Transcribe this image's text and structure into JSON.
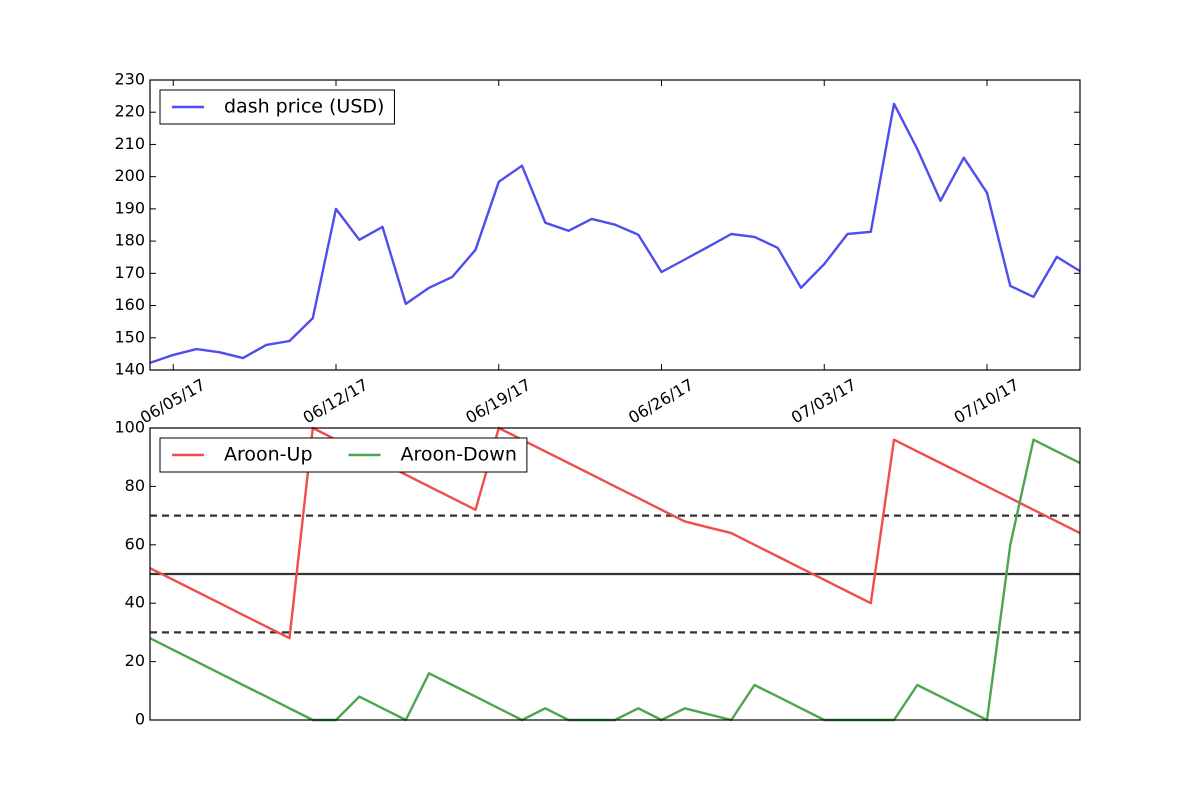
{
  "chart_data": [
    {
      "type": "line",
      "x": [
        "2017-06-04",
        "2017-06-05",
        "2017-06-06",
        "2017-06-07",
        "2017-06-08",
        "2017-06-09",
        "2017-06-10",
        "2017-06-11",
        "2017-06-12",
        "2017-06-13",
        "2017-06-14",
        "2017-06-15",
        "2017-06-16",
        "2017-06-17",
        "2017-06-18",
        "2017-06-19",
        "2017-06-20",
        "2017-06-21",
        "2017-06-22",
        "2017-06-23",
        "2017-06-24",
        "2017-06-25",
        "2017-06-26",
        "2017-06-27",
        "2017-06-28",
        "2017-06-29",
        "2017-06-30",
        "2017-07-01",
        "2017-07-02",
        "2017-07-03",
        "2017-07-04",
        "2017-07-05",
        "2017-07-06",
        "2017-07-07",
        "2017-07-08",
        "2017-07-09",
        "2017-07-10",
        "2017-07-11",
        "2017-07-12",
        "2017-07-13",
        "2017-07-14"
      ],
      "series": [
        {
          "name": "dash price (USD)",
          "color": "#4d4df0",
          "values": [
            142.2,
            144.7,
            146.5,
            145.5,
            143.7,
            147.8,
            149,
            156.1,
            190,
            180.4,
            184.4,
            160.5,
            165.5,
            168.9,
            177.3,
            198.4,
            203.4,
            185.7,
            183.2,
            186.9,
            185.1,
            182,
            170.4,
            174.3,
            178.2,
            182.2,
            181.3,
            177.9,
            165.5,
            172.9,
            182.2,
            182.9,
            222.6,
            208.6,
            192.5,
            205.9,
            195,
            166.1,
            162.7,
            175.1,
            170.7
          ]
        }
      ],
      "xlim": [
        "2017-06-04",
        "2017-07-14"
      ],
      "xticks": [
        {
          "value": "2017-06-05",
          "label": "06/05/17"
        },
        {
          "value": "2017-06-12",
          "label": "06/12/17"
        },
        {
          "value": "2017-06-19",
          "label": "06/19/17"
        },
        {
          "value": "2017-06-26",
          "label": "06/26/17"
        },
        {
          "value": "2017-07-03",
          "label": "07/03/17"
        },
        {
          "value": "2017-07-10",
          "label": "07/10/17"
        }
      ],
      "ylim": [
        140,
        230
      ],
      "yticks": [
        140,
        150,
        160,
        170,
        180,
        190,
        200,
        210,
        220,
        230
      ],
      "legend": "upper left"
    },
    {
      "type": "line",
      "x": [
        "2017-06-04",
        "2017-06-05",
        "2017-06-06",
        "2017-06-07",
        "2017-06-08",
        "2017-06-09",
        "2017-06-10",
        "2017-06-11",
        "2017-06-12",
        "2017-06-13",
        "2017-06-14",
        "2017-06-15",
        "2017-06-16",
        "2017-06-17",
        "2017-06-18",
        "2017-06-19",
        "2017-06-20",
        "2017-06-21",
        "2017-06-22",
        "2017-06-23",
        "2017-06-24",
        "2017-06-25",
        "2017-06-26",
        "2017-06-27",
        "2017-06-28",
        "2017-06-29",
        "2017-06-30",
        "2017-07-01",
        "2017-07-02",
        "2017-07-03",
        "2017-07-04",
        "2017-07-05",
        "2017-07-06",
        "2017-07-07",
        "2017-07-08",
        "2017-07-09",
        "2017-07-10",
        "2017-07-11",
        "2017-07-12",
        "2017-07-13",
        "2017-07-14"
      ],
      "series": [
        {
          "name": "Aroon-Up",
          "color": "#f04d4d",
          "values": [
            52,
            48,
            44,
            40,
            36,
            32,
            28,
            100,
            96,
            92,
            88,
            84,
            80,
            76,
            72,
            100,
            96,
            92,
            88,
            84,
            80,
            76,
            72,
            68,
            66,
            64,
            60,
            56,
            52,
            48,
            44,
            40,
            96,
            92,
            88,
            84,
            80,
            76,
            72,
            68,
            64
          ]
        },
        {
          "name": "Aroon-Down",
          "color": "#4da64d",
          "values": [
            28,
            24,
            20,
            16,
            12,
            8,
            4,
            0,
            0,
            8,
            4,
            0,
            16,
            12,
            8,
            4,
            0,
            4,
            0,
            0,
            0,
            4,
            0,
            4,
            2,
            0,
            12,
            8,
            4,
            0,
            0,
            0,
            0,
            12,
            8,
            4,
            0,
            60,
            96,
            92,
            88
          ]
        }
      ],
      "xlim": [
        "2017-06-04",
        "2017-07-14"
      ],
      "ylim": [
        0,
        100
      ],
      "yticks": [
        0,
        20,
        40,
        60,
        80,
        100
      ],
      "hlines": [
        {
          "value": 30,
          "style": "dashed"
        },
        {
          "value": 50,
          "style": "solid"
        },
        {
          "value": 70,
          "style": "dashed"
        }
      ],
      "legend": "upper left"
    }
  ]
}
